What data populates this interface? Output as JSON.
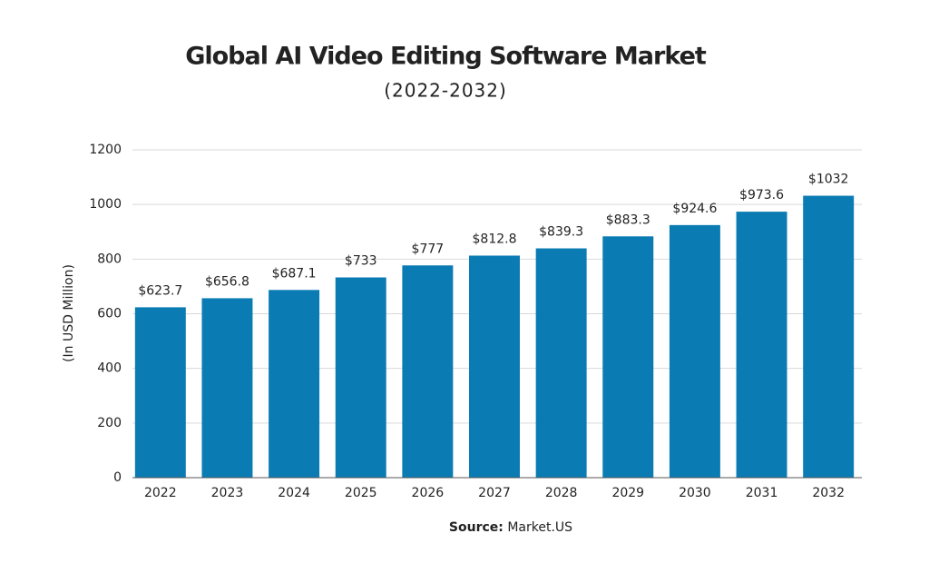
{
  "chart_data": {
    "type": "bar",
    "title": "Global AI Video Editing Software Market",
    "subtitle": "(2022-2032)",
    "y_label": "(In USD Million)",
    "source_label": "Source:",
    "source": "Market.US",
    "categories": [
      "2022",
      "2023",
      "2024",
      "2025",
      "2026",
      "2027",
      "2028",
      "2029",
      "2030",
      "2031",
      "2032"
    ],
    "values": [
      623.7,
      656.8,
      687.1,
      733,
      777,
      812.8,
      839.3,
      883.3,
      924.6,
      973.6,
      1032
    ],
    "value_labels": [
      "$623.7",
      "$656.8",
      "$687.1",
      "$733",
      "$777",
      "$812.8",
      "$839.3",
      "$883.3",
      "$924.6",
      "$973.6",
      "$1032"
    ],
    "color": "#0b7bb3",
    "ylim": [
      0,
      1200
    ],
    "yticks": [
      0,
      200,
      400,
      600,
      800,
      1000,
      1200
    ],
    "grid": true
  }
}
